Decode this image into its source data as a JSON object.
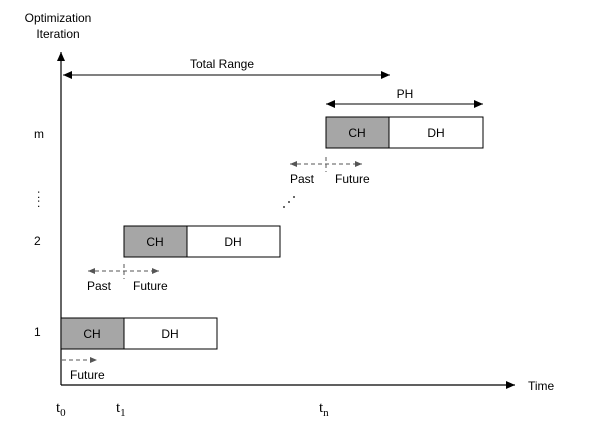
{
  "y_axis_label_line1": "Optimization",
  "y_axis_label_line2": "Iteration",
  "x_axis_label": "Time",
  "total_range_label": "Total Range",
  "ph_label": "PH",
  "iteration_labels": {
    "m": "m",
    "two": "2",
    "one": "1",
    "vdots": ":"
  },
  "time_labels": {
    "t0": {
      "base": "t",
      "sub": "0"
    },
    "t1": {
      "base": "t",
      "sub": "1"
    },
    "tn": {
      "base": "t",
      "sub": "n"
    }
  },
  "blocks": {
    "iter1": {
      "ch": "CH",
      "dh": "DH"
    },
    "iter2": {
      "ch": "CH",
      "dh": "DH"
    },
    "iterm": {
      "ch": "CH",
      "dh": "DH"
    }
  },
  "past_future": {
    "iter1": {
      "future": "Future"
    },
    "iter2": {
      "past": "Past",
      "future": "Future"
    },
    "iterm": {
      "past": "Past",
      "future": "Future"
    }
  },
  "colors": {
    "ch_fill": "#a6a6a6",
    "dh_fill": "#ffffff",
    "line": "#000000",
    "dashed": "#555555"
  }
}
